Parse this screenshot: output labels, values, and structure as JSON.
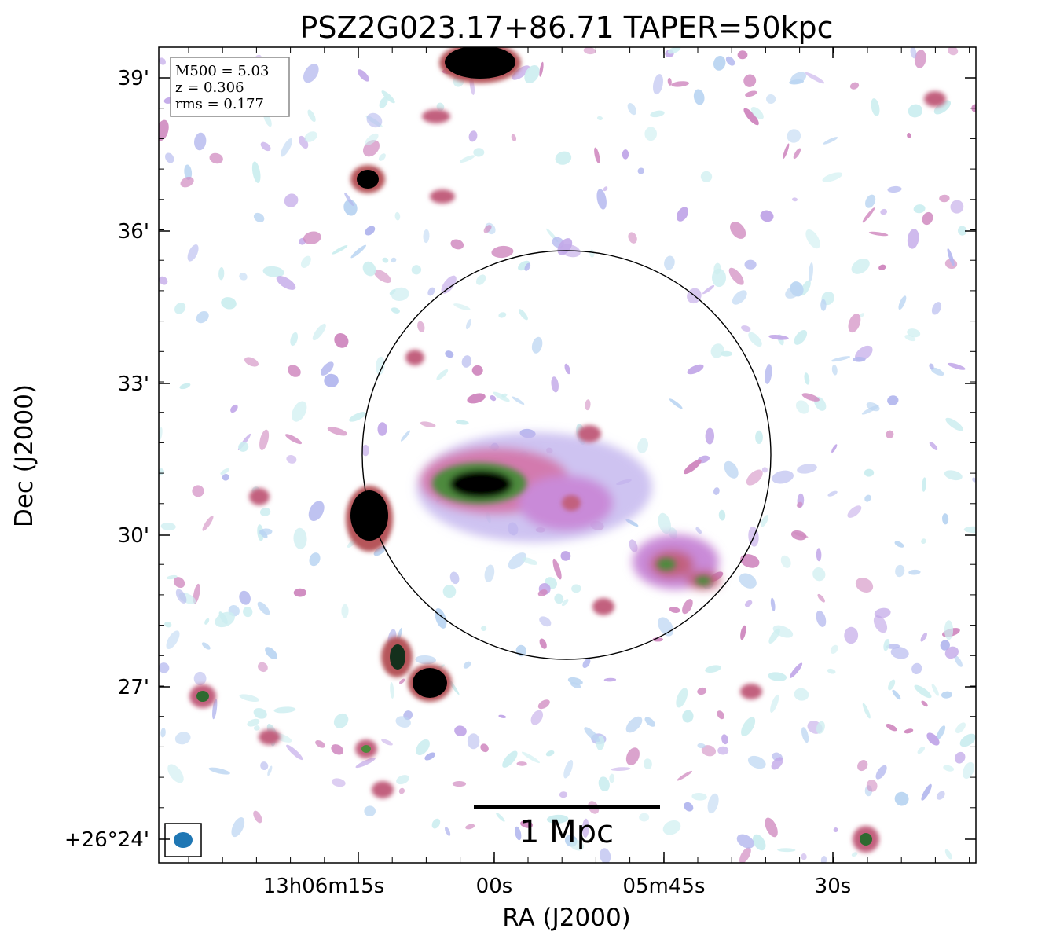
{
  "figure": {
    "title": "PSZ2G023.17+86.71 TAPER=50kpc",
    "xlabel": "RA (J2000)",
    "ylabel": "Dec (J2000)"
  },
  "info_box": {
    "lines": [
      "M500 = 5.03",
      "z = 0.306",
      "rms = 0.177"
    ]
  },
  "scale_bar": {
    "label": "1 Mpc"
  },
  "axes": {
    "x_ticks": [
      "13h06m15s",
      "00s",
      "05m45s",
      "30s"
    ],
    "y_ticks": [
      "39'",
      "36'",
      "33'",
      "30'",
      "27'",
      "+26°24'"
    ]
  },
  "colors": {
    "beam": "#1f77b4",
    "colormap": [
      "#ffffff",
      "#cdeef0",
      "#a8c8ee",
      "#b4a8ea",
      "#c98ad8",
      "#d46fa0",
      "#b6545a",
      "#4d8a3c",
      "#1c4a2a",
      "#000000"
    ]
  }
}
